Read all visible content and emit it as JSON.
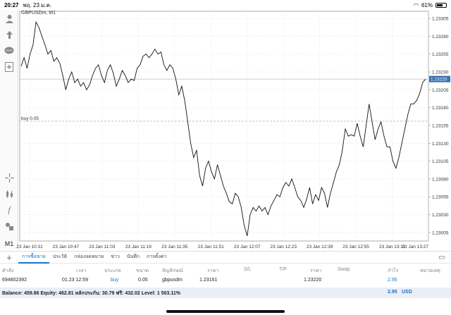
{
  "status": {
    "time": "20:27",
    "date": "พฤ. 23 ม.ค.",
    "battery": "61%",
    "battery_level": 0.61
  },
  "chart": {
    "symbol": "GBPUSDm, M1",
    "current_price_tag": "1.23220",
    "order_line_label": "buy 0.05"
  },
  "chart_data": {
    "type": "line",
    "x_labels": [
      "23 Jan 10:31",
      "23 Jan 10:47",
      "23 Jan 11:03",
      "23 Jan 11:19",
      "23 Jan 11:35",
      "23 Jan 11:51",
      "23 Jan 12:07",
      "23 Jan 12:23",
      "23 Jan 12:39",
      "23 Jan 12:55",
      "23 Jan 13:11",
      "23 Jan 13:27"
    ],
    "y_ticks": [
      "1.23305",
      "1.23280",
      "1.23255",
      "1.23230",
      "1.23205",
      "1.23180",
      "1.23155",
      "1.23130",
      "1.23105",
      "1.23080",
      "1.23055",
      "1.23030",
      "1.23005"
    ],
    "ylim": [
      1.22993,
      1.23315
    ],
    "current_price": 1.2322,
    "order_price": 1.23161,
    "values": [
      1.23238,
      1.2325,
      1.23235,
      1.23255,
      1.23268,
      1.233,
      1.23292,
      1.2328,
      1.23268,
      1.23255,
      1.2326,
      1.23245,
      1.2325,
      1.23242,
      1.23225,
      1.23205,
      1.2322,
      1.2323,
      1.23215,
      1.2322,
      1.2321,
      1.23215,
      1.23205,
      1.23212,
      1.23225,
      1.23235,
      1.2324,
      1.23225,
      1.23215,
      1.23232,
      1.2324,
      1.23228,
      1.2321,
      1.2322,
      1.23232,
      1.23225,
      1.23215,
      1.2322,
      1.23218,
      1.23235,
      1.2324,
      1.23252,
      1.23255,
      1.2325,
      1.23255,
      1.23262,
      1.23255,
      1.23258,
      1.2324,
      1.23232,
      1.2324,
      1.23235,
      1.2322,
      1.23198,
      1.2321,
      1.2319,
      1.2316,
      1.2313,
      1.2311,
      1.2312,
      1.23085,
      1.2307,
      1.23095,
      1.23105,
      1.2309,
      1.2308,
      1.231,
      1.23085,
      1.2307,
      1.2306,
      1.23048,
      1.23045,
      1.2306,
      1.23055,
      1.2304,
      1.23015,
      1.23,
      1.2303,
      1.2304,
      1.23035,
      1.23042,
      1.23035,
      1.2304,
      1.2303,
      1.23042,
      1.2305,
      1.23058,
      1.23055,
      1.23068,
      1.23075,
      1.2307,
      1.2308,
      1.23068,
      1.23055,
      1.2305,
      1.2304,
      1.23052,
      1.23068,
      1.23045,
      1.23058,
      1.2305,
      1.23068,
      1.2306,
      1.2304,
      1.2306,
      1.23075,
      1.2309,
      1.231,
      1.2312,
      1.2315,
      1.2314,
      1.23142,
      1.2314,
      1.23158,
      1.2314,
      1.23125,
      1.23155,
      1.23185,
      1.2316,
      1.23135,
      1.2315,
      1.2316,
      1.2314,
      1.23125,
      1.23125,
      1.23105,
      1.23095,
      1.2311,
      1.2313,
      1.2315,
      1.2317,
      1.23185,
      1.23185,
      1.2319,
      1.232,
      1.23215,
      1.2322
    ],
    "grid": true
  },
  "toolbar": {
    "tabs": [
      "การซื้อขาย",
      "ประวัติ",
      "กล่องจดหมาย",
      "ข่าว",
      "บันทึก",
      "การตั้งค่า"
    ],
    "timeframe": "M1"
  },
  "table": {
    "headers": [
      "คำสั่ง",
      "เวลา",
      "ประเภท",
      "ขนาด",
      "สัญลักษณ์",
      "ราคา",
      "S/L",
      "T/P",
      "ราคา",
      "Swap",
      "กำไร",
      "หมายเหตุ"
    ],
    "rows": [
      {
        "order": "694802392",
        "time": "01.23 12:59",
        "type": "buy",
        "size": "0.05",
        "symbol": "gbpusdm",
        "price": "1.23161",
        "sl": "",
        "tp": "",
        "current": "1.23220",
        "swap": "",
        "profit": "2.95",
        "comment": ""
      }
    ]
  },
  "balance": {
    "text": "Balance: 459.86 Equity: 462.81 หลักประกัน: 30.79 ฟรี: 432.02 Level: 1 503.11%",
    "profit": "2.95",
    "currency": "USD"
  }
}
